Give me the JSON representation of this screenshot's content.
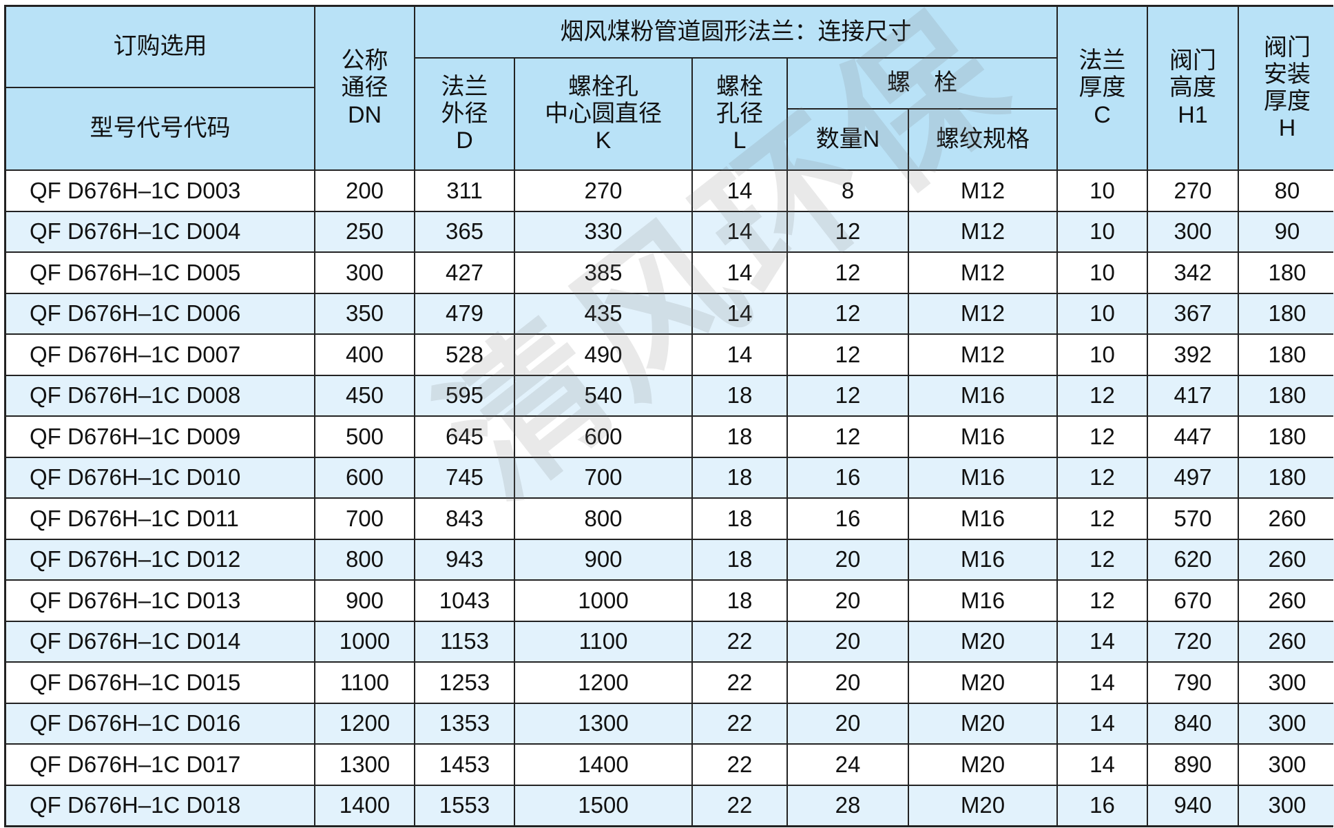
{
  "header": {
    "order": "订购选用",
    "model": "型号代号代码",
    "dn": "公称\n通径\nDN",
    "group": "烟风煤粉管道圆形法兰：连接尺寸",
    "d": "法兰\n外径\nD",
    "k": "螺栓孔\n中心圆直径\nK",
    "l": "螺栓\n孔径\nL",
    "bolt": "螺　栓",
    "n": "数量N",
    "thread": "螺纹规格",
    "c": "法兰\n厚度\nC",
    "h1": "阀门\n高度\nH1",
    "h": "阀门\n安装\n厚度\nH"
  },
  "watermark": "清风环保",
  "colors": {
    "header_bg": "#b9e2f7",
    "alt_row_bg": "#e2f2fc",
    "border": "#222222"
  },
  "rows": [
    [
      "QF D676H–1C D003",
      "200",
      "311",
      "270",
      "14",
      "8",
      "M12",
      "10",
      "270",
      "80"
    ],
    [
      "QF D676H–1C D004",
      "250",
      "365",
      "330",
      "14",
      "12",
      "M12",
      "10",
      "300",
      "90"
    ],
    [
      "QF D676H–1C D005",
      "300",
      "427",
      "385",
      "14",
      "12",
      "M12",
      "10",
      "342",
      "180"
    ],
    [
      "QF D676H–1C D006",
      "350",
      "479",
      "435",
      "14",
      "12",
      "M12",
      "10",
      "367",
      "180"
    ],
    [
      "QF D676H–1C D007",
      "400",
      "528",
      "490",
      "14",
      "12",
      "M12",
      "10",
      "392",
      "180"
    ],
    [
      "QF D676H–1C D008",
      "450",
      "595",
      "540",
      "18",
      "12",
      "M16",
      "12",
      "417",
      "180"
    ],
    [
      "QF D676H–1C D009",
      "500",
      "645",
      "600",
      "18",
      "12",
      "M16",
      "12",
      "447",
      "180"
    ],
    [
      "QF D676H–1C D010",
      "600",
      "745",
      "700",
      "18",
      "16",
      "M16",
      "12",
      "497",
      "180"
    ],
    [
      "QF D676H–1C D011",
      "700",
      "843",
      "800",
      "18",
      "16",
      "M16",
      "12",
      "570",
      "260"
    ],
    [
      "QF D676H–1C D012",
      "800",
      "943",
      "900",
      "18",
      "20",
      "M16",
      "12",
      "620",
      "260"
    ],
    [
      "QF D676H–1C D013",
      "900",
      "1043",
      "1000",
      "18",
      "20",
      "M16",
      "12",
      "670",
      "260"
    ],
    [
      "QF D676H–1C D014",
      "1000",
      "1153",
      "1100",
      "22",
      "20",
      "M20",
      "14",
      "720",
      "260"
    ],
    [
      "QF D676H–1C D015",
      "1100",
      "1253",
      "1200",
      "22",
      "20",
      "M20",
      "14",
      "790",
      "300"
    ],
    [
      "QF D676H–1C D016",
      "1200",
      "1353",
      "1300",
      "22",
      "20",
      "M20",
      "14",
      "840",
      "300"
    ],
    [
      "QF D676H–1C D017",
      "1300",
      "1453",
      "1400",
      "22",
      "24",
      "M20",
      "14",
      "890",
      "300"
    ],
    [
      "QF D676H–1C D018",
      "1400",
      "1553",
      "1500",
      "22",
      "28",
      "M20",
      "16",
      "940",
      "300"
    ]
  ]
}
